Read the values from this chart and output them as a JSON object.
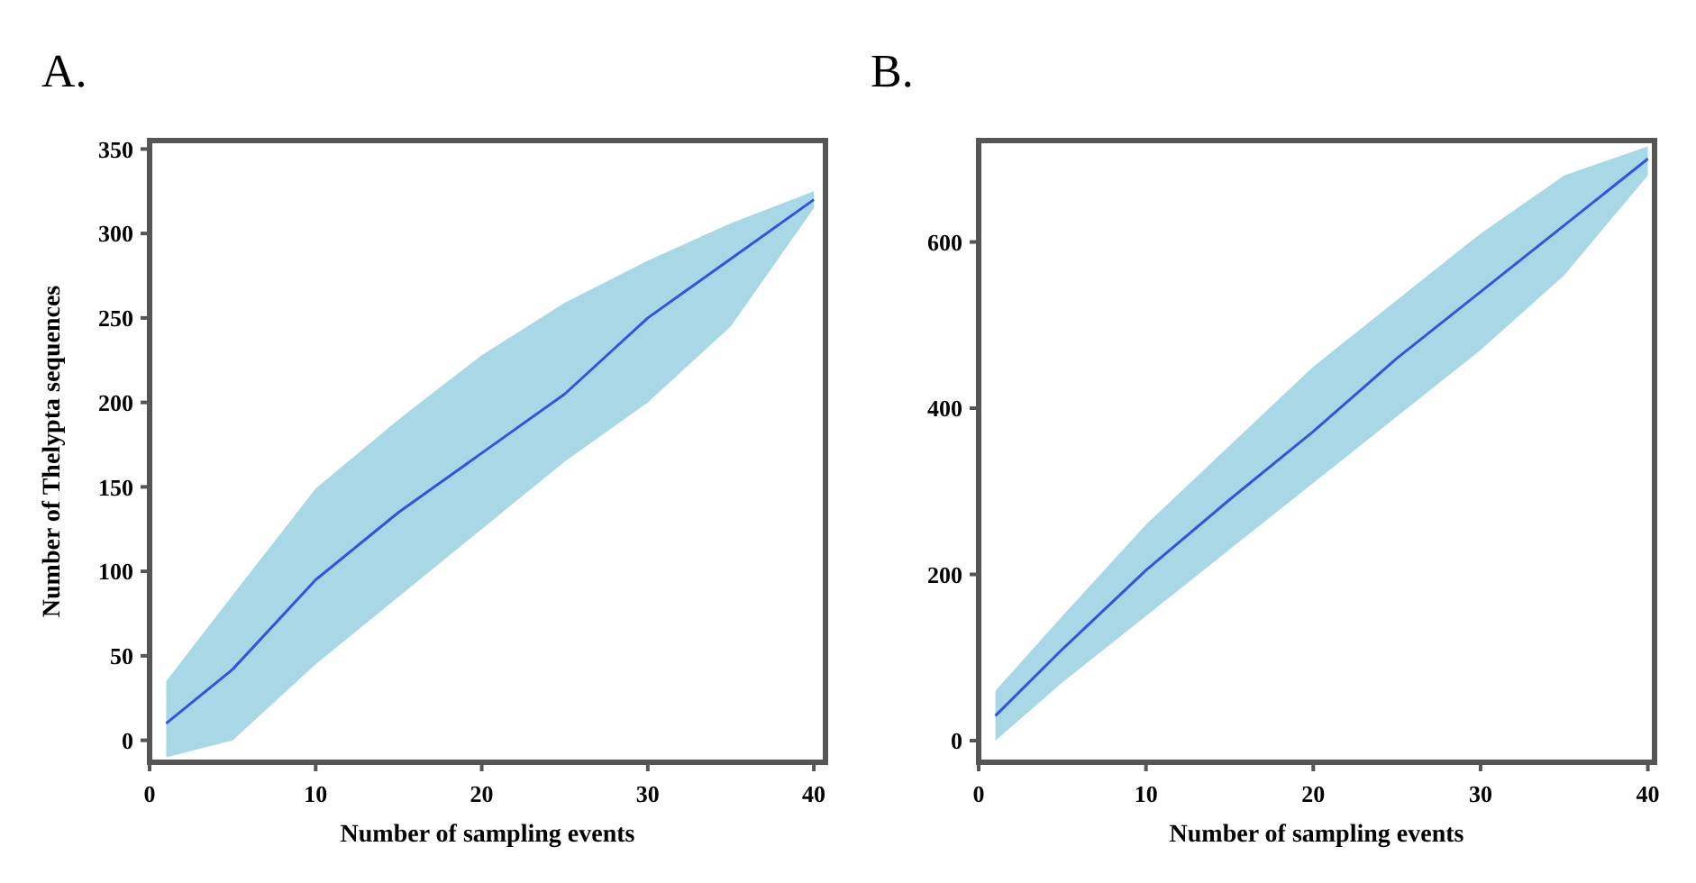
{
  "chart_data": [
    {
      "type": "line",
      "title": "A.",
      "xlabel": "Number of sampling events",
      "ylabel": "Number of Thelypta sequences",
      "xlim": [
        0,
        40.7
      ],
      "ylim": [
        -13,
        355
      ],
      "xticks": [
        0,
        10,
        20,
        30,
        40
      ],
      "yticks": [
        0,
        50,
        100,
        150,
        200,
        250,
        300,
        350
      ],
      "x": [
        1,
        5,
        10,
        15,
        20,
        25,
        30,
        35,
        40
      ],
      "series": [
        {
          "color": "#3355dd",
          "values": [
            10,
            42,
            95,
            135,
            170,
            205,
            250,
            285,
            320
          ],
          "lower": [
            -10,
            0,
            45,
            85,
            125,
            165,
            200,
            245,
            315
          ],
          "upper": [
            35,
            86,
            149,
            190,
            228,
            259,
            284,
            306,
            325
          ]
        }
      ]
    },
    {
      "type": "line",
      "title": "B.",
      "xlabel": "Number of sampling events",
      "xlim": [
        0,
        40.4
      ],
      "ylim": [
        -26,
        722
      ],
      "xticks": [
        0,
        10,
        20,
        30,
        40
      ],
      "yticks": [
        0,
        200,
        400,
        600
      ],
      "x": [
        1,
        5,
        10,
        15,
        20,
        25,
        30,
        35,
        40
      ],
      "series": [
        {
          "color": "#3355dd",
          "values": [
            30,
            110,
            205,
            290,
            372,
            460,
            540,
            620,
            700
          ],
          "lower": [
            0,
            70,
            150,
            230,
            310,
            390,
            470,
            560,
            680
          ],
          "upper": [
            60,
            150,
            260,
            355,
            450,
            530,
            610,
            680,
            715
          ]
        }
      ]
    }
  ]
}
